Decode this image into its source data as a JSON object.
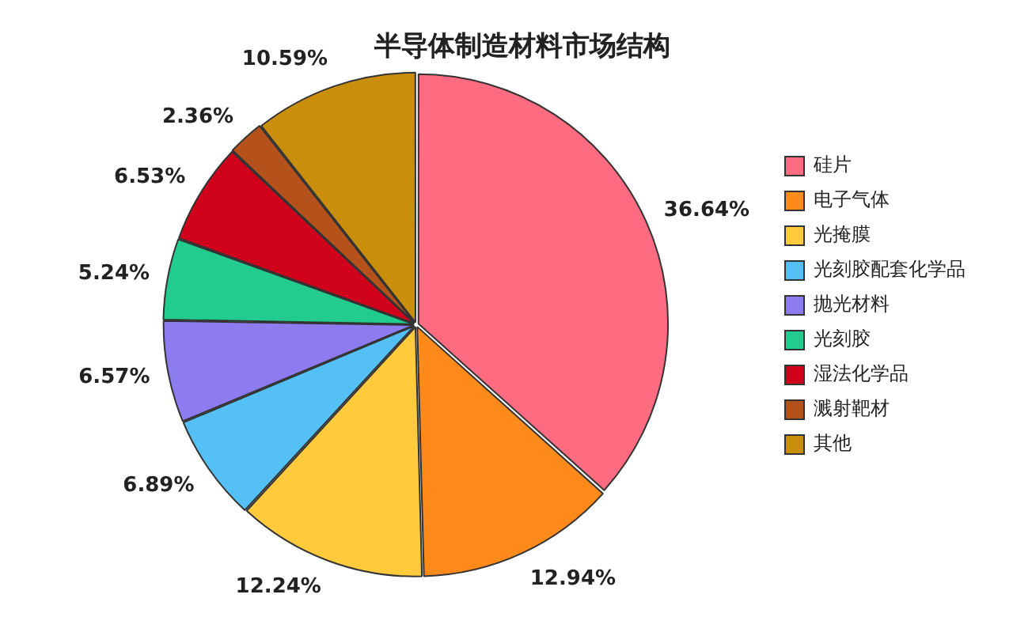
{
  "chart_data": {
    "type": "pie",
    "title": "半导体制造材料市场结构",
    "categories": [
      "硅片",
      "电子气体",
      "光掩膜",
      "光刻胶配套化学品",
      "抛光材料",
      "光刻胶",
      "湿法化学品",
      "溅射靶材",
      "其他"
    ],
    "values": [
      36.64,
      12.94,
      12.24,
      6.89,
      6.57,
      5.24,
      6.53,
      2.36,
      10.59
    ],
    "colors": [
      "#ff6b81",
      "#ff8a1c",
      "#ffcb3d",
      "#54c0f5",
      "#8d7cf0",
      "#22cc8e",
      "#d0021b",
      "#b5521b",
      "#c98e0c"
    ],
    "value_labels": [
      "36.64%",
      "12.94%",
      "12.24%",
      "6.89%",
      "6.57%",
      "5.24%",
      "6.53%",
      "2.36%",
      "10.59%"
    ],
    "legend": "right"
  }
}
